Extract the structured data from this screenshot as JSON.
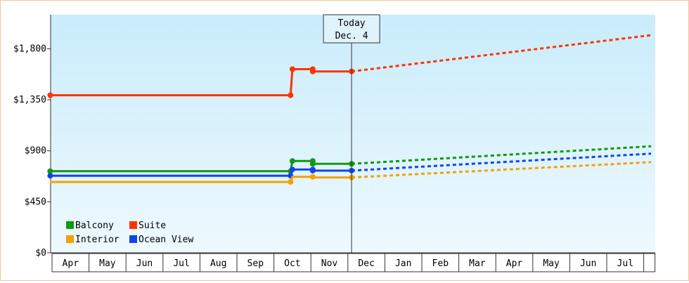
{
  "chart_data": {
    "type": "line",
    "yticks": [
      "$0",
      "$450",
      "$900",
      "$1,350",
      "$1,800"
    ],
    "ytick_values": [
      0,
      450,
      900,
      1350,
      1800
    ],
    "ylim": [
      0,
      2100
    ],
    "months": [
      "Apr",
      "May",
      "Jun",
      "Jul",
      "Aug",
      "Sep",
      "Oct",
      "Nov",
      "Dec",
      "Jan",
      "Feb",
      "Mar",
      "Apr",
      "May",
      "Jun",
      "Jul"
    ],
    "today_label_line1": "Today",
    "today_label_line2": "Dec. 4",
    "today_x": 8.1,
    "x_range": [
      -0.05,
      16.2
    ],
    "series": [
      {
        "name": "Suite",
        "color": "#ff3300",
        "history": [
          [
            -0.05,
            1390
          ],
          [
            6.45,
            1390
          ],
          [
            6.5,
            1620
          ],
          [
            7.05,
            1620
          ],
          [
            7.05,
            1600
          ],
          [
            8.1,
            1600
          ]
        ],
        "markers": [
          [
            -0.05,
            1390
          ],
          [
            6.45,
            1390
          ],
          [
            6.5,
            1620
          ],
          [
            7.05,
            1620
          ],
          [
            7.05,
            1600
          ],
          [
            8.1,
            1600
          ]
        ],
        "forecast": [
          [
            8.1,
            1600
          ],
          [
            16.2,
            1920
          ]
        ]
      },
      {
        "name": "Balcony",
        "color": "#119911",
        "history": [
          [
            -0.05,
            720
          ],
          [
            6.45,
            720
          ],
          [
            6.5,
            810
          ],
          [
            7.05,
            810
          ],
          [
            7.05,
            785
          ],
          [
            8.1,
            785
          ]
        ],
        "markers": [
          [
            -0.05,
            720
          ],
          [
            6.45,
            720
          ],
          [
            6.5,
            810
          ],
          [
            7.05,
            810
          ],
          [
            7.05,
            785
          ],
          [
            8.1,
            785
          ]
        ],
        "forecast": [
          [
            8.1,
            785
          ],
          [
            16.2,
            940
          ]
        ]
      },
      {
        "name": "Ocean View",
        "color": "#1144ee",
        "history": [
          [
            -0.05,
            680
          ],
          [
            6.45,
            680
          ],
          [
            6.5,
            735
          ],
          [
            7.05,
            735
          ],
          [
            7.05,
            725
          ],
          [
            8.1,
            725
          ]
        ],
        "markers": [
          [
            -0.05,
            680
          ],
          [
            6.45,
            680
          ],
          [
            6.5,
            735
          ],
          [
            7.05,
            735
          ],
          [
            7.05,
            725
          ],
          [
            8.1,
            725
          ]
        ],
        "forecast": [
          [
            8.1,
            725
          ],
          [
            16.2,
            875
          ]
        ]
      },
      {
        "name": "Interior",
        "color": "#f5a000",
        "history": [
          [
            -0.05,
            625
          ],
          [
            6.45,
            625
          ],
          [
            6.5,
            670
          ],
          [
            7.05,
            670
          ],
          [
            7.05,
            665
          ],
          [
            8.1,
            665
          ]
        ],
        "markers": [
          [
            6.45,
            625
          ],
          [
            7.05,
            670
          ],
          [
            8.1,
            665
          ]
        ],
        "forecast": [
          [
            8.1,
            665
          ],
          [
            16.2,
            800
          ]
        ]
      }
    ],
    "legend": [
      {
        "label": "Balcony",
        "color": "#119911"
      },
      {
        "label": "Suite",
        "color": "#ff3300"
      },
      {
        "label": "Interior",
        "color": "#f5a000"
      },
      {
        "label": "Ocean View",
        "color": "#1144ee"
      }
    ],
    "legend_position": "bottom-left",
    "grid": false
  }
}
